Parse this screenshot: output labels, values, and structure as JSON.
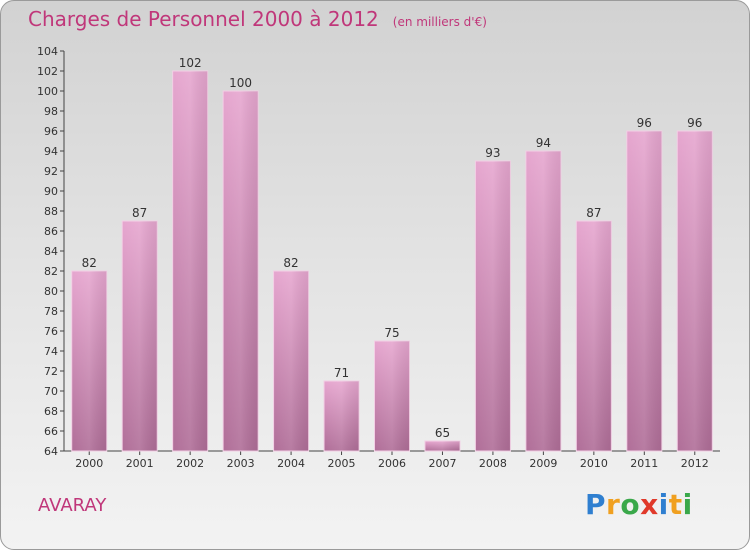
{
  "title": "Charges de Personnel 2000 à 2012",
  "unit_note": "(en milliers d'€)",
  "commune": "AVARAY",
  "logo_text": "Proxiti",
  "colors": {
    "title": "#c0377a",
    "bar_top": "#e6a6cf",
    "bar_bottom": "#b06e98",
    "axis": "#444444"
  },
  "chart_data": {
    "type": "bar",
    "title": "Charges de Personnel 2000 à 2012",
    "xlabel": "",
    "ylabel": "",
    "categories": [
      "2000",
      "2001",
      "2002",
      "2003",
      "2004",
      "2005",
      "2006",
      "2007",
      "2008",
      "2009",
      "2010",
      "2011",
      "2012"
    ],
    "values": [
      82,
      87,
      102,
      100,
      82,
      71,
      75,
      65,
      93,
      94,
      87,
      96,
      96
    ],
    "ylim": [
      64,
      104
    ],
    "yticks": [
      64,
      66,
      68,
      70,
      72,
      74,
      76,
      78,
      80,
      82,
      84,
      86,
      88,
      90,
      92,
      94,
      96,
      98,
      100,
      102,
      104
    ],
    "grid": false,
    "legend": "none"
  }
}
